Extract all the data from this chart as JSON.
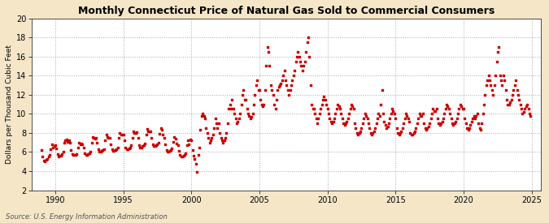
{
  "title": "Monthly Connecticut Price of Natural Gas Sold to Commercial Consumers",
  "ylabel": "Dollars per Thousand Cubic Feet",
  "source": "Source: U.S. Energy Information Administration",
  "background_color": "#f5e6c8",
  "plot_bg_color": "#ffffff",
  "dot_color": "#cc0000",
  "dot_size": 3.5,
  "xlim": [
    1988.3,
    2025.7
  ],
  "ylim": [
    2,
    20
  ],
  "yticks": [
    2,
    4,
    6,
    8,
    10,
    12,
    14,
    16,
    18,
    20
  ],
  "xticks": [
    1990,
    1995,
    2000,
    2005,
    2010,
    2015,
    2020,
    2025
  ],
  "data": [
    [
      1989.0,
      6.2
    ],
    [
      1989.08,
      5.5
    ],
    [
      1989.17,
      5.1
    ],
    [
      1989.25,
      5.0
    ],
    [
      1989.33,
      5.2
    ],
    [
      1989.42,
      5.3
    ],
    [
      1989.5,
      5.5
    ],
    [
      1989.58,
      5.7
    ],
    [
      1989.67,
      6.3
    ],
    [
      1989.75,
      6.8
    ],
    [
      1989.83,
      6.5
    ],
    [
      1989.92,
      6.6
    ],
    [
      1990.0,
      6.7
    ],
    [
      1990.08,
      6.4
    ],
    [
      1990.17,
      5.8
    ],
    [
      1990.25,
      5.5
    ],
    [
      1990.33,
      5.6
    ],
    [
      1990.42,
      5.6
    ],
    [
      1990.5,
      5.8
    ],
    [
      1990.58,
      6.0
    ],
    [
      1990.67,
      7.0
    ],
    [
      1990.75,
      7.2
    ],
    [
      1990.83,
      7.3
    ],
    [
      1990.92,
      7.1
    ],
    [
      1991.0,
      7.2
    ],
    [
      1991.08,
      7.0
    ],
    [
      1991.17,
      6.2
    ],
    [
      1991.25,
      5.8
    ],
    [
      1991.33,
      5.7
    ],
    [
      1991.42,
      5.7
    ],
    [
      1991.5,
      5.7
    ],
    [
      1991.58,
      5.8
    ],
    [
      1991.67,
      6.5
    ],
    [
      1991.75,
      7.0
    ],
    [
      1991.83,
      6.8
    ],
    [
      1991.92,
      6.9
    ],
    [
      1992.0,
      6.8
    ],
    [
      1992.08,
      6.5
    ],
    [
      1992.17,
      5.9
    ],
    [
      1992.25,
      5.7
    ],
    [
      1992.33,
      5.7
    ],
    [
      1992.42,
      5.8
    ],
    [
      1992.5,
      5.9
    ],
    [
      1992.58,
      6.0
    ],
    [
      1992.67,
      7.0
    ],
    [
      1992.75,
      7.6
    ],
    [
      1992.83,
      7.5
    ],
    [
      1992.92,
      7.4
    ],
    [
      1993.0,
      7.5
    ],
    [
      1993.08,
      7.0
    ],
    [
      1993.17,
      6.3
    ],
    [
      1993.25,
      6.0
    ],
    [
      1993.33,
      6.0
    ],
    [
      1993.42,
      6.1
    ],
    [
      1993.5,
      6.2
    ],
    [
      1993.58,
      6.3
    ],
    [
      1993.67,
      7.2
    ],
    [
      1993.75,
      7.8
    ],
    [
      1993.83,
      7.6
    ],
    [
      1993.92,
      7.5
    ],
    [
      1994.0,
      7.5
    ],
    [
      1994.08,
      6.8
    ],
    [
      1994.17,
      6.3
    ],
    [
      1994.25,
      6.1
    ],
    [
      1994.33,
      6.1
    ],
    [
      1994.42,
      6.2
    ],
    [
      1994.5,
      6.3
    ],
    [
      1994.58,
      6.5
    ],
    [
      1994.67,
      7.5
    ],
    [
      1994.75,
      8.0
    ],
    [
      1994.83,
      7.8
    ],
    [
      1994.92,
      7.8
    ],
    [
      1995.0,
      7.8
    ],
    [
      1995.08,
      7.2
    ],
    [
      1995.17,
      6.5
    ],
    [
      1995.25,
      6.3
    ],
    [
      1995.33,
      6.3
    ],
    [
      1995.42,
      6.4
    ],
    [
      1995.5,
      6.5
    ],
    [
      1995.58,
      6.7
    ],
    [
      1995.67,
      7.5
    ],
    [
      1995.75,
      8.2
    ],
    [
      1995.83,
      8.0
    ],
    [
      1995.92,
      8.0
    ],
    [
      1996.0,
      8.1
    ],
    [
      1996.08,
      7.5
    ],
    [
      1996.17,
      6.7
    ],
    [
      1996.25,
      6.5
    ],
    [
      1996.33,
      6.5
    ],
    [
      1996.42,
      6.6
    ],
    [
      1996.5,
      6.7
    ],
    [
      1996.58,
      6.9
    ],
    [
      1996.67,
      7.8
    ],
    [
      1996.75,
      8.4
    ],
    [
      1996.83,
      8.2
    ],
    [
      1996.92,
      8.2
    ],
    [
      1997.0,
      8.2
    ],
    [
      1997.08,
      7.5
    ],
    [
      1997.17,
      6.8
    ],
    [
      1997.25,
      6.6
    ],
    [
      1997.33,
      6.6
    ],
    [
      1997.42,
      6.7
    ],
    [
      1997.5,
      6.8
    ],
    [
      1997.58,
      7.0
    ],
    [
      1997.67,
      7.9
    ],
    [
      1997.75,
      8.5
    ],
    [
      1997.83,
      8.3
    ],
    [
      1997.92,
      7.8
    ],
    [
      1998.0,
      7.5
    ],
    [
      1998.08,
      6.8
    ],
    [
      1998.17,
      6.2
    ],
    [
      1998.25,
      6.0
    ],
    [
      1998.33,
      6.0
    ],
    [
      1998.42,
      6.1
    ],
    [
      1998.5,
      6.2
    ],
    [
      1998.58,
      6.4
    ],
    [
      1998.67,
      7.1
    ],
    [
      1998.75,
      7.6
    ],
    [
      1998.83,
      7.4
    ],
    [
      1998.92,
      6.9
    ],
    [
      1999.0,
      6.7
    ],
    [
      1999.08,
      6.1
    ],
    [
      1999.17,
      5.7
    ],
    [
      1999.25,
      5.5
    ],
    [
      1999.33,
      5.5
    ],
    [
      1999.42,
      5.6
    ],
    [
      1999.5,
      5.7
    ],
    [
      1999.58,
      5.9
    ],
    [
      1999.67,
      6.7
    ],
    [
      1999.75,
      7.2
    ],
    [
      1999.83,
      6.8
    ],
    [
      1999.92,
      7.3
    ],
    [
      2000.0,
      7.2
    ],
    [
      2000.08,
      6.2
    ],
    [
      2000.17,
      5.6
    ],
    [
      2000.25,
      5.3
    ],
    [
      2000.33,
      4.8
    ],
    [
      2000.42,
      3.9
    ],
    [
      2000.5,
      5.7
    ],
    [
      2000.58,
      6.5
    ],
    [
      2000.67,
      8.3
    ],
    [
      2000.75,
      9.8
    ],
    [
      2000.83,
      10.0
    ],
    [
      2000.92,
      9.8
    ],
    [
      2001.0,
      9.5
    ],
    [
      2001.08,
      8.5
    ],
    [
      2001.17,
      8.0
    ],
    [
      2001.25,
      7.5
    ],
    [
      2001.33,
      7.0
    ],
    [
      2001.42,
      7.2
    ],
    [
      2001.5,
      7.5
    ],
    [
      2001.58,
      7.8
    ],
    [
      2001.67,
      8.5
    ],
    [
      2001.75,
      9.5
    ],
    [
      2001.83,
      9.0
    ],
    [
      2001.92,
      8.5
    ],
    [
      2002.0,
      9.0
    ],
    [
      2002.08,
      8.0
    ],
    [
      2002.17,
      7.5
    ],
    [
      2002.25,
      7.2
    ],
    [
      2002.33,
      7.0
    ],
    [
      2002.42,
      7.2
    ],
    [
      2002.5,
      7.5
    ],
    [
      2002.58,
      8.0
    ],
    [
      2002.67,
      9.0
    ],
    [
      2002.75,
      10.5
    ],
    [
      2002.83,
      11.0
    ],
    [
      2002.92,
      10.5
    ],
    [
      2003.0,
      11.5
    ],
    [
      2003.08,
      10.5
    ],
    [
      2003.17,
      10.0
    ],
    [
      2003.25,
      9.5
    ],
    [
      2003.33,
      9.0
    ],
    [
      2003.42,
      9.2
    ],
    [
      2003.5,
      9.5
    ],
    [
      2003.58,
      10.0
    ],
    [
      2003.67,
      11.0
    ],
    [
      2003.75,
      12.0
    ],
    [
      2003.83,
      12.5
    ],
    [
      2003.92,
      11.5
    ],
    [
      2004.0,
      11.5
    ],
    [
      2004.08,
      10.5
    ],
    [
      2004.17,
      10.0
    ],
    [
      2004.25,
      9.8
    ],
    [
      2004.33,
      9.5
    ],
    [
      2004.42,
      9.7
    ],
    [
      2004.5,
      10.0
    ],
    [
      2004.58,
      11.0
    ],
    [
      2004.67,
      12.0
    ],
    [
      2004.75,
      13.0
    ],
    [
      2004.83,
      13.5
    ],
    [
      2004.92,
      12.5
    ],
    [
      2005.0,
      12.5
    ],
    [
      2005.08,
      11.5
    ],
    [
      2005.17,
      11.0
    ],
    [
      2005.25,
      10.8
    ],
    [
      2005.33,
      11.0
    ],
    [
      2005.42,
      12.5
    ],
    [
      2005.5,
      15.0
    ],
    [
      2005.58,
      17.0
    ],
    [
      2005.67,
      16.5
    ],
    [
      2005.75,
      15.0
    ],
    [
      2005.83,
      13.0
    ],
    [
      2005.92,
      12.5
    ],
    [
      2006.0,
      12.0
    ],
    [
      2006.08,
      11.0
    ],
    [
      2006.17,
      10.5
    ],
    [
      2006.25,
      11.5
    ],
    [
      2006.33,
      12.5
    ],
    [
      2006.42,
      12.8
    ],
    [
      2006.5,
      13.0
    ],
    [
      2006.58,
      13.2
    ],
    [
      2006.67,
      13.5
    ],
    [
      2006.75,
      14.0
    ],
    [
      2006.83,
      14.5
    ],
    [
      2006.92,
      13.5
    ],
    [
      2007.0,
      13.0
    ],
    [
      2007.08,
      12.5
    ],
    [
      2007.17,
      12.0
    ],
    [
      2007.25,
      12.5
    ],
    [
      2007.33,
      13.0
    ],
    [
      2007.42,
      13.5
    ],
    [
      2007.5,
      14.0
    ],
    [
      2007.58,
      14.5
    ],
    [
      2007.67,
      15.5
    ],
    [
      2007.75,
      16.0
    ],
    [
      2007.83,
      16.5
    ],
    [
      2007.92,
      16.0
    ],
    [
      2008.0,
      15.5
    ],
    [
      2008.08,
      15.0
    ],
    [
      2008.17,
      14.5
    ],
    [
      2008.25,
      15.0
    ],
    [
      2008.33,
      15.5
    ],
    [
      2008.42,
      16.5
    ],
    [
      2008.5,
      17.5
    ],
    [
      2008.58,
      18.0
    ],
    [
      2008.67,
      16.0
    ],
    [
      2008.75,
      13.0
    ],
    [
      2008.83,
      11.0
    ],
    [
      2008.92,
      10.5
    ],
    [
      2009.0,
      10.5
    ],
    [
      2009.08,
      10.0
    ],
    [
      2009.17,
      9.5
    ],
    [
      2009.25,
      9.0
    ],
    [
      2009.33,
      9.5
    ],
    [
      2009.42,
      10.0
    ],
    [
      2009.5,
      10.5
    ],
    [
      2009.58,
      11.0
    ],
    [
      2009.67,
      11.5
    ],
    [
      2009.75,
      11.8
    ],
    [
      2009.83,
      11.5
    ],
    [
      2009.92,
      11.0
    ],
    [
      2010.0,
      10.5
    ],
    [
      2010.08,
      10.0
    ],
    [
      2010.17,
      9.5
    ],
    [
      2010.25,
      9.2
    ],
    [
      2010.33,
      9.0
    ],
    [
      2010.42,
      9.2
    ],
    [
      2010.5,
      9.5
    ],
    [
      2010.58,
      10.0
    ],
    [
      2010.67,
      10.5
    ],
    [
      2010.75,
      11.0
    ],
    [
      2010.83,
      10.8
    ],
    [
      2010.92,
      10.5
    ],
    [
      2011.0,
      10.0
    ],
    [
      2011.08,
      9.5
    ],
    [
      2011.17,
      9.0
    ],
    [
      2011.25,
      8.8
    ],
    [
      2011.33,
      9.0
    ],
    [
      2011.42,
      9.2
    ],
    [
      2011.5,
      9.5
    ],
    [
      2011.58,
      10.0
    ],
    [
      2011.67,
      10.5
    ],
    [
      2011.75,
      11.0
    ],
    [
      2011.83,
      10.8
    ],
    [
      2011.92,
      10.5
    ],
    [
      2012.0,
      9.0
    ],
    [
      2012.08,
      8.5
    ],
    [
      2012.17,
      8.0
    ],
    [
      2012.25,
      7.8
    ],
    [
      2012.33,
      8.0
    ],
    [
      2012.42,
      8.2
    ],
    [
      2012.5,
      8.5
    ],
    [
      2012.58,
      9.0
    ],
    [
      2012.67,
      9.5
    ],
    [
      2012.75,
      10.0
    ],
    [
      2012.83,
      9.8
    ],
    [
      2012.92,
      9.5
    ],
    [
      2013.0,
      9.0
    ],
    [
      2013.08,
      8.5
    ],
    [
      2013.17,
      8.0
    ],
    [
      2013.25,
      7.8
    ],
    [
      2013.33,
      8.0
    ],
    [
      2013.42,
      8.2
    ],
    [
      2013.5,
      8.5
    ],
    [
      2013.58,
      9.0
    ],
    [
      2013.67,
      9.5
    ],
    [
      2013.75,
      10.0
    ],
    [
      2013.83,
      9.8
    ],
    [
      2013.92,
      11.0
    ],
    [
      2014.0,
      12.5
    ],
    [
      2014.08,
      10.0
    ],
    [
      2014.17,
      9.2
    ],
    [
      2014.25,
      8.8
    ],
    [
      2014.33,
      8.5
    ],
    [
      2014.42,
      8.7
    ],
    [
      2014.5,
      9.0
    ],
    [
      2014.58,
      9.5
    ],
    [
      2014.67,
      10.0
    ],
    [
      2014.75,
      10.5
    ],
    [
      2014.83,
      10.3
    ],
    [
      2014.92,
      10.0
    ],
    [
      2015.0,
      9.5
    ],
    [
      2015.08,
      8.5
    ],
    [
      2015.17,
      8.0
    ],
    [
      2015.25,
      7.8
    ],
    [
      2015.33,
      8.0
    ],
    [
      2015.42,
      8.2
    ],
    [
      2015.5,
      8.5
    ],
    [
      2015.58,
      9.0
    ],
    [
      2015.67,
      9.5
    ],
    [
      2015.75,
      10.0
    ],
    [
      2015.83,
      9.8
    ],
    [
      2015.92,
      9.5
    ],
    [
      2016.0,
      9.2
    ],
    [
      2016.08,
      8.0
    ],
    [
      2016.17,
      7.8
    ],
    [
      2016.25,
      7.8
    ],
    [
      2016.33,
      8.0
    ],
    [
      2016.42,
      8.2
    ],
    [
      2016.5,
      8.5
    ],
    [
      2016.58,
      9.0
    ],
    [
      2016.67,
      9.5
    ],
    [
      2016.75,
      10.0
    ],
    [
      2016.83,
      9.8
    ],
    [
      2016.92,
      9.8
    ],
    [
      2017.0,
      10.0
    ],
    [
      2017.08,
      9.0
    ],
    [
      2017.17,
      8.5
    ],
    [
      2017.25,
      8.3
    ],
    [
      2017.33,
      8.5
    ],
    [
      2017.42,
      8.7
    ],
    [
      2017.5,
      9.0
    ],
    [
      2017.58,
      9.5
    ],
    [
      2017.67,
      10.0
    ],
    [
      2017.75,
      10.5
    ],
    [
      2017.83,
      10.3
    ],
    [
      2017.92,
      10.3
    ],
    [
      2018.0,
      10.5
    ],
    [
      2018.08,
      9.5
    ],
    [
      2018.17,
      9.0
    ],
    [
      2018.25,
      8.8
    ],
    [
      2018.33,
      9.0
    ],
    [
      2018.42,
      9.2
    ],
    [
      2018.5,
      9.5
    ],
    [
      2018.58,
      10.0
    ],
    [
      2018.67,
      10.5
    ],
    [
      2018.75,
      11.0
    ],
    [
      2018.83,
      10.8
    ],
    [
      2018.92,
      10.5
    ],
    [
      2019.0,
      10.0
    ],
    [
      2019.08,
      9.5
    ],
    [
      2019.17,
      9.0
    ],
    [
      2019.25,
      8.8
    ],
    [
      2019.33,
      9.0
    ],
    [
      2019.42,
      9.2
    ],
    [
      2019.5,
      9.5
    ],
    [
      2019.58,
      10.0
    ],
    [
      2019.67,
      10.5
    ],
    [
      2019.75,
      11.0
    ],
    [
      2019.83,
      10.8
    ],
    [
      2019.92,
      10.5
    ],
    [
      2020.0,
      10.5
    ],
    [
      2020.08,
      9.5
    ],
    [
      2020.17,
      9.0
    ],
    [
      2020.25,
      8.5
    ],
    [
      2020.33,
      8.3
    ],
    [
      2020.42,
      8.5
    ],
    [
      2020.5,
      8.8
    ],
    [
      2020.58,
      9.2
    ],
    [
      2020.67,
      9.5
    ],
    [
      2020.75,
      9.8
    ],
    [
      2020.83,
      9.5
    ],
    [
      2020.92,
      9.8
    ],
    [
      2021.0,
      10.0
    ],
    [
      2021.08,
      9.0
    ],
    [
      2021.17,
      8.5
    ],
    [
      2021.25,
      8.3
    ],
    [
      2021.33,
      9.0
    ],
    [
      2021.42,
      10.0
    ],
    [
      2021.5,
      11.0
    ],
    [
      2021.58,
      12.0
    ],
    [
      2021.67,
      13.0
    ],
    [
      2021.75,
      13.5
    ],
    [
      2021.83,
      14.0
    ],
    [
      2021.92,
      13.5
    ],
    [
      2022.0,
      13.0
    ],
    [
      2022.08,
      12.5
    ],
    [
      2022.17,
      12.0
    ],
    [
      2022.25,
      13.0
    ],
    [
      2022.33,
      14.0
    ],
    [
      2022.42,
      15.5
    ],
    [
      2022.5,
      16.5
    ],
    [
      2022.58,
      17.0
    ],
    [
      2022.67,
      14.0
    ],
    [
      2022.75,
      13.5
    ],
    [
      2022.83,
      13.0
    ],
    [
      2022.92,
      14.0
    ],
    [
      2023.0,
      13.5
    ],
    [
      2023.08,
      12.5
    ],
    [
      2023.17,
      11.5
    ],
    [
      2023.25,
      11.0
    ],
    [
      2023.33,
      11.0
    ],
    [
      2023.42,
      11.2
    ],
    [
      2023.5,
      11.5
    ],
    [
      2023.58,
      12.0
    ],
    [
      2023.67,
      12.5
    ],
    [
      2023.75,
      13.0
    ],
    [
      2023.83,
      13.5
    ],
    [
      2023.92,
      12.5
    ],
    [
      2024.0,
      12.0
    ],
    [
      2024.08,
      11.5
    ],
    [
      2024.17,
      11.0
    ],
    [
      2024.25,
      10.5
    ],
    [
      2024.33,
      10.0
    ],
    [
      2024.42,
      10.2
    ],
    [
      2024.5,
      10.5
    ],
    [
      2024.58,
      10.8
    ],
    [
      2024.67,
      11.0
    ],
    [
      2024.75,
      10.5
    ],
    [
      2024.83,
      10.0
    ],
    [
      2024.92,
      9.8
    ]
  ]
}
